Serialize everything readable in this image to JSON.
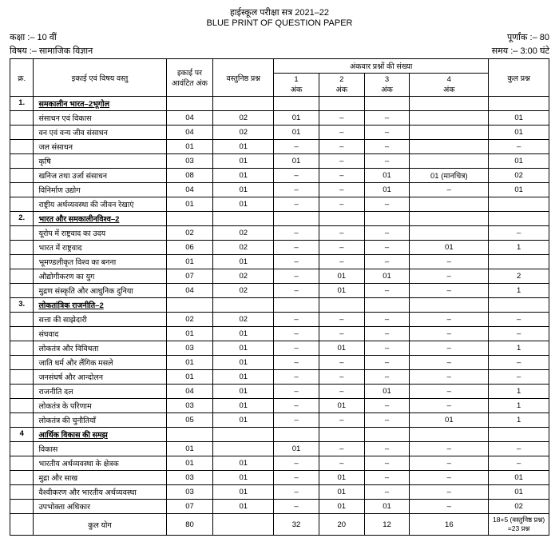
{
  "header": {
    "line1": "हाईस्कूल परीक्षा सत्र 2021–22",
    "line2": "BLUE PRINT OF QUESTION PAPER"
  },
  "meta": {
    "class_label": "कक्षा :–",
    "class_val": "10 वीं",
    "marks_label": "पूर्णांक :–",
    "marks_val": "80",
    "subject_label": "विषय :–",
    "subject_val": "सामाजिक विज्ञान",
    "time_label": "समय :–",
    "time_val": "3:00 घंटे"
  },
  "thead": {
    "sno": "क्र.",
    "topic": "इकाई एवं विषय वस्तु",
    "unit_marks": "इकाई पर आवंटित अंक",
    "obj": "वस्तुनिष्ठ प्रश्न",
    "group": "अंकवार प्रश्नों की संख्या",
    "c1a": "1",
    "c1b": "अंक",
    "c2a": "2",
    "c2b": "अंक",
    "c3a": "3",
    "c3b": "अंक",
    "c4a": "4",
    "c4b": "अंक",
    "total": "कुल प्रश्न"
  },
  "sections": [
    {
      "sno": "1.",
      "title": "समकालीन भारत–2भूगोल",
      "rows": [
        {
          "t": "संसाधन एवं विकास",
          "u": "04",
          "v": "02",
          "c1": "01",
          "c2": "–",
          "c3": "–",
          "c4": "",
          "tot": "01"
        },
        {
          "t": "वन एवं वन्य जीव संसाधन",
          "u": "04",
          "v": "02",
          "c1": "01",
          "c2": "–",
          "c3": "–",
          "c4": "",
          "tot": "01"
        },
        {
          "t": "जल संसाधन",
          "u": "01",
          "v": "01",
          "c1": "–",
          "c2": "–",
          "c3": "–",
          "c4": "",
          "tot": "–"
        },
        {
          "t": "कृषि",
          "u": "03",
          "v": "01",
          "c1": "01",
          "c2": "–",
          "c3": "–",
          "c4": "",
          "tot": "01"
        },
        {
          "t": "खनिज तथा उर्जा संसाधन",
          "u": "08",
          "v": "01",
          "c1": "–",
          "c2": "–",
          "c3": "01",
          "c4": "01 (मानचित्र)",
          "tot": "02"
        },
        {
          "t": "विनिर्माण उद्योग",
          "u": "04",
          "v": "01",
          "c1": "–",
          "c2": "–",
          "c3": "01",
          "c4": "–",
          "tot": "01"
        },
        {
          "t": "राष्ट्रीय अर्थव्यवस्था की जीवन रेखाएं",
          "u": "01",
          "v": "01",
          "c1": "–",
          "c2": "–",
          "c3": "–",
          "c4": "",
          "tot": ""
        }
      ]
    },
    {
      "sno": "2.",
      "title": "भारत और समकालीनविश्व–2",
      "rows": [
        {
          "t": "यूरोप में राष्ट्रवाद का उदय",
          "u": "02",
          "v": "02",
          "c1": "–",
          "c2": "–",
          "c3": "–",
          "c4": "",
          "tot": "–"
        },
        {
          "t": "भारत में राष्ट्रवाद",
          "u": "06",
          "v": "02",
          "c1": "–",
          "c2": "–",
          "c3": "–",
          "c4": "01",
          "tot": "1"
        },
        {
          "t": "भूमण्डलीकृत विश्व का बनना",
          "u": "01",
          "v": "01",
          "c1": "–",
          "c2": "–",
          "c3": "–",
          "c4": "–",
          "tot": ""
        },
        {
          "t": "औद्योगीकरण का युग",
          "u": "07",
          "v": "02",
          "c1": "–",
          "c2": "01",
          "c3": "01",
          "c4": "–",
          "tot": "2"
        },
        {
          "t": "मुद्रण संस्कृति और आधुनिक दुनिया",
          "u": "04",
          "v": "02",
          "c1": "–",
          "c2": "01",
          "c3": "–",
          "c4": "–",
          "tot": "1"
        }
      ]
    },
    {
      "sno": "3.",
      "title": "लोकतांत्रिक राजनीति–2",
      "rows": [
        {
          "t": "सत्ता की साझेदारी",
          "u": "02",
          "v": "02",
          "c1": "–",
          "c2": "–",
          "c3": "–",
          "c4": "–",
          "tot": "–"
        },
        {
          "t": "संघवाद",
          "u": "01",
          "v": "01",
          "c1": "–",
          "c2": "–",
          "c3": "–",
          "c4": "–",
          "tot": "–"
        },
        {
          "t": "लोकतंत्र और विविधता",
          "u": "03",
          "v": "01",
          "c1": "–",
          "c2": "01",
          "c3": "–",
          "c4": "–",
          "tot": "1"
        },
        {
          "t": "जाति धर्म और लैंगिक मसले",
          "u": "01",
          "v": "01",
          "c1": "–",
          "c2": "–",
          "c3": "–",
          "c4": "–",
          "tot": "–"
        },
        {
          "t": "जनसंघर्ष और आन्दोलन",
          "u": "01",
          "v": "01",
          "c1": "–",
          "c2": "–",
          "c3": "–",
          "c4": "–",
          "tot": "–"
        },
        {
          "t": "राजनीति दल",
          "u": "04",
          "v": "01",
          "c1": "–",
          "c2": "–",
          "c3": "01",
          "c4": "–",
          "tot": "1"
        },
        {
          "t": "लोकतंत्र के परिणाम",
          "u": "03",
          "v": "01",
          "c1": "–",
          "c2": "01",
          "c3": "–",
          "c4": "–",
          "tot": "1"
        },
        {
          "t": "लोकतंत्र की चुनौतियाँ",
          "u": "05",
          "v": "01",
          "c1": "–",
          "c2": "–",
          "c3": "–",
          "c4": "01",
          "tot": "1"
        }
      ]
    },
    {
      "sno": "4",
      "title": "आर्थिक विकास की समझ",
      "rows": [
        {
          "t": "विकास",
          "u": "01",
          "v": "",
          "c1": "01",
          "c2": "–",
          "c3": "–",
          "c4": "–",
          "tot": "–"
        },
        {
          "t": "भारतीय अर्थव्यवस्था के क्षेत्रक",
          "u": "01",
          "v": "01",
          "c1": "–",
          "c2": "–",
          "c3": "–",
          "c4": "–",
          "tot": "–"
        },
        {
          "t": "मुद्रा और साख",
          "u": "03",
          "v": "01",
          "c1": "–",
          "c2": "01",
          "c3": "–",
          "c4": "–",
          "tot": "01"
        },
        {
          "t": "वैश्वीकरण और भारतीय अर्थव्यवस्था",
          "u": "03",
          "v": "01",
          "c1": "–",
          "c2": "01",
          "c3": "–",
          "c4": "–",
          "tot": "01"
        },
        {
          "t": "उपभोक्ता अधिकार",
          "u": "07",
          "v": "01",
          "c1": "–",
          "c2": "01",
          "c3": "01",
          "c4": "–",
          "tot": "02"
        }
      ]
    }
  ],
  "footer": {
    "label": "कुल योग",
    "u": "80",
    "v": "",
    "c1": "32",
    "c2": "20",
    "c3": "12",
    "c4": "16",
    "tot": "18+5 (वस्तुनिष्ठ प्रश्न) =23 प्रश्न"
  }
}
